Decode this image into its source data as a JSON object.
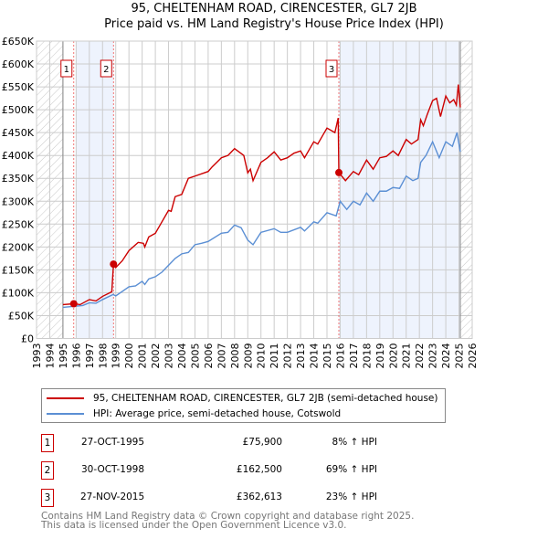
{
  "title": "95, CHELTENHAM ROAD, CIRENCESTER, GL7 2JB",
  "subtitle": "Price paid vs. HM Land Registry's House Price Index (HPI)",
  "chart_data": {
    "type": "line",
    "xlim": [
      1993,
      2026
    ],
    "ylim": [
      0,
      650000
    ],
    "x_ticks": [
      "1993",
      "1994",
      "1995",
      "1996",
      "1997",
      "1998",
      "1999",
      "2000",
      "2001",
      "2002",
      "2003",
      "2004",
      "2005",
      "2006",
      "2007",
      "2008",
      "2009",
      "2010",
      "2011",
      "2012",
      "2013",
      "2014",
      "2015",
      "2016",
      "2017",
      "2018",
      "2019",
      "2020",
      "2021",
      "2022",
      "2023",
      "2024",
      "2025",
      "2026"
    ],
    "y_ticks": [
      {
        "v": 0,
        "l": "£0"
      },
      {
        "v": 50000,
        "l": "£50K"
      },
      {
        "v": 100000,
        "l": "£100K"
      },
      {
        "v": 150000,
        "l": "£150K"
      },
      {
        "v": 200000,
        "l": "£200K"
      },
      {
        "v": 250000,
        "l": "£250K"
      },
      {
        "v": 300000,
        "l": "£300K"
      },
      {
        "v": 350000,
        "l": "£350K"
      },
      {
        "v": 400000,
        "l": "£400K"
      },
      {
        "v": 450000,
        "l": "£450K"
      },
      {
        "v": 500000,
        "l": "£500K"
      },
      {
        "v": 550000,
        "l": "£550K"
      },
      {
        "v": 600000,
        "l": "£600K"
      },
      {
        "v": 650000,
        "l": "£650K"
      }
    ],
    "grid": true,
    "hatched_before": 1995.0,
    "hatched_after": 2025.1,
    "shaded_ranges": [
      [
        1996.0,
        1998.83
      ],
      [
        2015.9,
        2025.1
      ]
    ],
    "series": [
      {
        "name": "95, CHELTENHAM ROAD, CIRENCESTER, GL7 2JB (semi-detached house)",
        "color": "#cc0000",
        "points": [
          [
            1995.0,
            74
          ],
          [
            1995.82,
            75.9
          ],
          [
            1996.3,
            74
          ],
          [
            1997,
            85
          ],
          [
            1997.5,
            82
          ],
          [
            1998,
            92
          ],
          [
            1998.7,
            102
          ],
          [
            1998.83,
            162.5
          ],
          [
            1999,
            155
          ],
          [
            1999.5,
            170
          ],
          [
            2000,
            192
          ],
          [
            2000.7,
            210
          ],
          [
            2001.1,
            208
          ],
          [
            2001.2,
            200
          ],
          [
            2001.5,
            222
          ],
          [
            2002,
            230
          ],
          [
            2002.3,
            245
          ],
          [
            2003,
            280
          ],
          [
            2003.2,
            278
          ],
          [
            2003.5,
            310
          ],
          [
            2004,
            315
          ],
          [
            2004.5,
            350
          ],
          [
            2005,
            355
          ],
          [
            2006,
            365
          ],
          [
            2006.3,
            375
          ],
          [
            2007,
            395
          ],
          [
            2007.5,
            400
          ],
          [
            2008,
            415
          ],
          [
            2008.7,
            400
          ],
          [
            2009,
            362
          ],
          [
            2009.2,
            370
          ],
          [
            2009.4,
            345
          ],
          [
            2010,
            385
          ],
          [
            2010.5,
            395
          ],
          [
            2011,
            408
          ],
          [
            2011.5,
            390
          ],
          [
            2012,
            395
          ],
          [
            2012.5,
            405
          ],
          [
            2013,
            410
          ],
          [
            2013.3,
            395
          ],
          [
            2014,
            430
          ],
          [
            2014.3,
            425
          ],
          [
            2015,
            460
          ],
          [
            2015.6,
            450
          ],
          [
            2015.85,
            482
          ],
          [
            2015.9,
            362.6
          ],
          [
            2016.4,
            345
          ],
          [
            2017,
            365
          ],
          [
            2017.4,
            358
          ],
          [
            2018,
            390
          ],
          [
            2018.5,
            370
          ],
          [
            2019,
            395
          ],
          [
            2019.5,
            398
          ],
          [
            2020,
            410
          ],
          [
            2020.4,
            400
          ],
          [
            2021,
            435
          ],
          [
            2021.4,
            425
          ],
          [
            2021.9,
            435
          ],
          [
            2022.1,
            478
          ],
          [
            2022.3,
            465
          ],
          [
            2022.6,
            490
          ],
          [
            2023,
            520
          ],
          [
            2023.3,
            525
          ],
          [
            2023.6,
            485
          ],
          [
            2024,
            530
          ],
          [
            2024.3,
            515
          ],
          [
            2024.6,
            522
          ],
          [
            2024.8,
            510
          ],
          [
            2024.95,
            555
          ],
          [
            2025.1,
            505
          ]
        ]
      },
      {
        "name": "HPI: Average price, semi-detached house, Cotswold",
        "color": "#5b8fd4",
        "points": [
          [
            1995.0,
            68
          ],
          [
            1995.75,
            70
          ],
          [
            1996.5,
            72
          ],
          [
            1997,
            78
          ],
          [
            1997.5,
            77
          ],
          [
            1998,
            85
          ],
          [
            1998.8,
            96
          ],
          [
            1999,
            93
          ],
          [
            2000,
            113
          ],
          [
            2000.5,
            115
          ],
          [
            2001,
            125
          ],
          [
            2001.2,
            118
          ],
          [
            2001.5,
            130
          ],
          [
            2002,
            135
          ],
          [
            2002.5,
            145
          ],
          [
            2003,
            160
          ],
          [
            2003.5,
            175
          ],
          [
            2004,
            185
          ],
          [
            2004.5,
            188
          ],
          [
            2005,
            205
          ],
          [
            2005.5,
            208
          ],
          [
            2006,
            212
          ],
          [
            2007,
            230
          ],
          [
            2007.5,
            232
          ],
          [
            2008,
            248
          ],
          [
            2008.5,
            242
          ],
          [
            2009,
            215
          ],
          [
            2009.4,
            205
          ],
          [
            2010,
            232
          ],
          [
            2011,
            240
          ],
          [
            2011.5,
            232
          ],
          [
            2012,
            232
          ],
          [
            2013,
            243
          ],
          [
            2013.3,
            235
          ],
          [
            2014,
            255
          ],
          [
            2014.3,
            252
          ],
          [
            2015,
            275
          ],
          [
            2015.7,
            268
          ],
          [
            2016,
            300
          ],
          [
            2016.5,
            282
          ],
          [
            2017,
            300
          ],
          [
            2017.5,
            292
          ],
          [
            2018,
            318
          ],
          [
            2018.5,
            300
          ],
          [
            2019,
            322
          ],
          [
            2019.5,
            322
          ],
          [
            2020,
            330
          ],
          [
            2020.5,
            328
          ],
          [
            2021,
            355
          ],
          [
            2021.5,
            345
          ],
          [
            2021.9,
            350
          ],
          [
            2022.1,
            385
          ],
          [
            2022.5,
            400
          ],
          [
            2023,
            430
          ],
          [
            2023.5,
            395
          ],
          [
            2024,
            430
          ],
          [
            2024.5,
            420
          ],
          [
            2024.85,
            450
          ],
          [
            2025.1,
            408
          ]
        ]
      }
    ],
    "sales": [
      {
        "label": "1",
        "x": 1995.82,
        "y": 75900
      },
      {
        "label": "2",
        "x": 1998.83,
        "y": 162500
      },
      {
        "label": "3",
        "x": 2015.9,
        "y": 362613
      }
    ]
  },
  "legend": {
    "red": "95, CHELTENHAM ROAD, CIRENCESTER, GL7 2JB (semi-detached house)",
    "blue": "HPI: Average price, semi-detached house, Cotswold"
  },
  "table": [
    {
      "n": "1",
      "date": "27-OCT-1995",
      "price": "£75,900",
      "hpi": "8% ↑ HPI"
    },
    {
      "n": "2",
      "date": "30-OCT-1998",
      "price": "£162,500",
      "hpi": "69% ↑ HPI"
    },
    {
      "n": "3",
      "date": "27-NOV-2015",
      "price": "£362,613",
      "hpi": "23% ↑ HPI"
    }
  ],
  "footer": {
    "line1": "Contains HM Land Registry data © Crown copyright and database right 2025.",
    "line2": "This data is licensed under the Open Government Licence v3.0."
  }
}
